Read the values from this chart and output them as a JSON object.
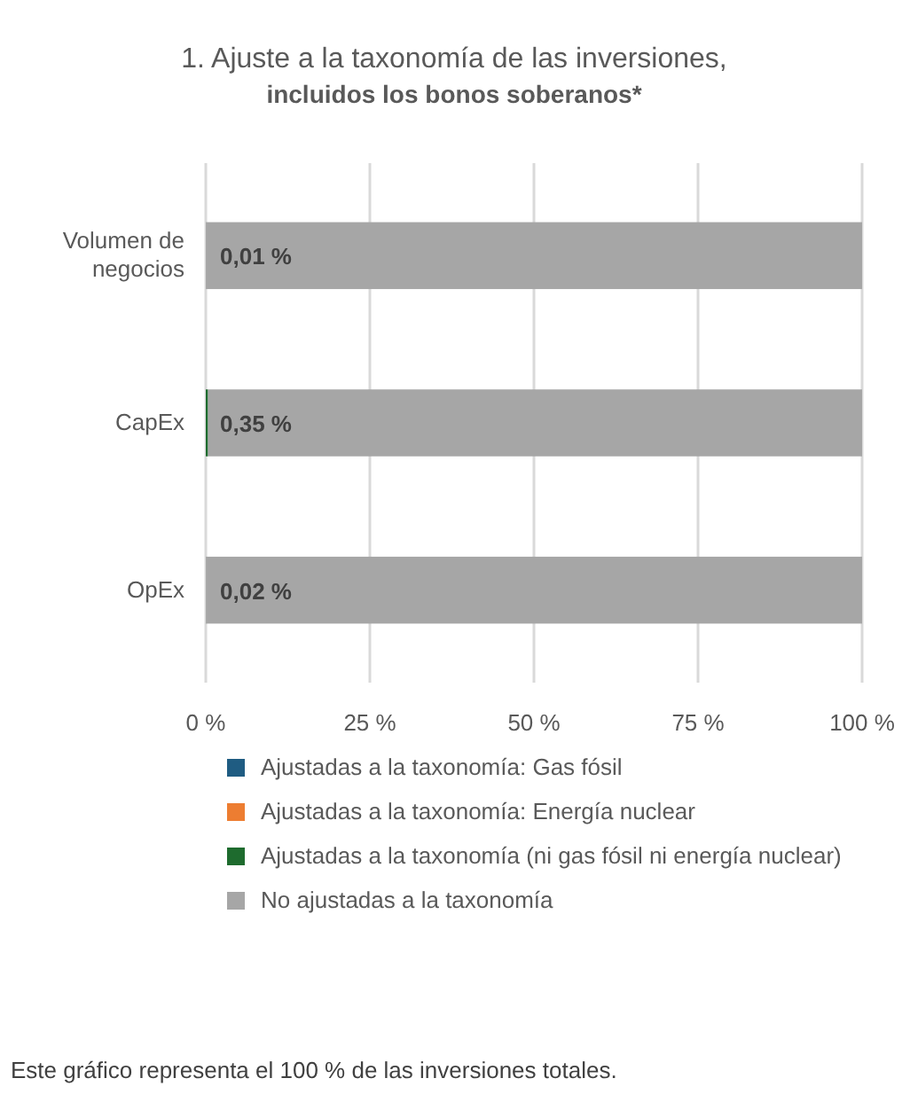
{
  "chart_data": {
    "type": "bar",
    "orientation": "horizontal",
    "stacked": true,
    "title": "1. Ajuste a la taxonomía de las inversiones,",
    "subtitle": "incluidos los bonos soberanos*",
    "categories": [
      "Volumen de negocios",
      "CapEx",
      "OpEx"
    ],
    "series": [
      {
        "name": "Ajustadas a la taxonomía: Gas fósil",
        "color": "#1f5c82",
        "values": [
          0,
          0,
          0
        ]
      },
      {
        "name": "Ajustadas a la taxonomía: Energía nuclear",
        "color": "#ed7d31",
        "values": [
          0,
          0,
          0
        ]
      },
      {
        "name": "Ajustadas a la taxonomía (ni gas fósil ni energía nuclear)",
        "color": "#1e6b2e",
        "values": [
          0.01,
          0.35,
          0.02
        ],
        "value_labels": [
          "0,01 %",
          "0,35 %",
          "0,02 %"
        ]
      },
      {
        "name": "No ajustadas a la taxonomía",
        "color": "#a6a6a6",
        "values": [
          99.99,
          99.65,
          99.98
        ]
      }
    ],
    "xlim": [
      0,
      100
    ],
    "xticks": [
      {
        "value": 0,
        "label": "0 %"
      },
      {
        "value": 25,
        "label": "25 %"
      },
      {
        "value": 50,
        "label": "50 %"
      },
      {
        "value": 75,
        "label": "75 %"
      },
      {
        "value": 100,
        "label": "100 %"
      }
    ],
    "grid": "x",
    "legend": "bottom",
    "annotations": [
      "Este gráfico representa el 100 % de las inversiones totales."
    ]
  }
}
